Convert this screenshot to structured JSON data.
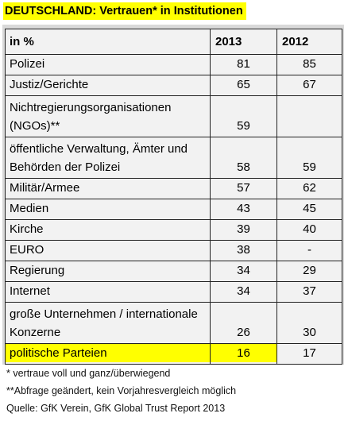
{
  "title": "DEUTSCHLAND: Vertrauen* in Institutionen",
  "table": {
    "header": {
      "label": "in  %",
      "col2013": "2013",
      "col2012": "2012"
    },
    "rows": [
      {
        "label": "Polizei",
        "v2013": "81",
        "v2012": "85"
      },
      {
        "label": "Justiz/Gerichte",
        "v2013": "65",
        "v2012": "67"
      },
      {
        "label": "Nichtregierungsorganisationen (NGOs)**",
        "v2013": "59",
        "v2012": ""
      },
      {
        "label": "öffentliche Verwaltung, Ämter und Behörden der Polizei",
        "v2013": "58",
        "v2012": "59"
      },
      {
        "label": "Militär/Armee",
        "v2013": "57",
        "v2012": "62"
      },
      {
        "label": "Medien",
        "v2013": "43",
        "v2012": "45"
      },
      {
        "label": "Kirche",
        "v2013": "39",
        "v2012": "40"
      },
      {
        "label": "EURO",
        "v2013": "38",
        "v2012": "-"
      },
      {
        "label": "Regierung",
        "v2013": "34",
        "v2012": "29"
      },
      {
        "label": "Internet",
        "v2013": "34",
        "v2012": "37"
      },
      {
        "label": "große Unternehmen / internationale Konzerne",
        "v2013": "26",
        "v2012": "30"
      },
      {
        "label": "politische Parteien",
        "v2013": "16",
        "v2012": "17"
      }
    ]
  },
  "notes": {
    "n1": "* vertraue voll und ganz/überwiegend",
    "n2": "**Abfrage geändert, kein Vorjahresvergleich möglich",
    "source": "Quelle: GfK Verein, GfK Global Trust Report 2013"
  },
  "colors": {
    "highlight": "#ffff00",
    "frame": "#d9d9d9",
    "cell": "#f2f2f2"
  }
}
